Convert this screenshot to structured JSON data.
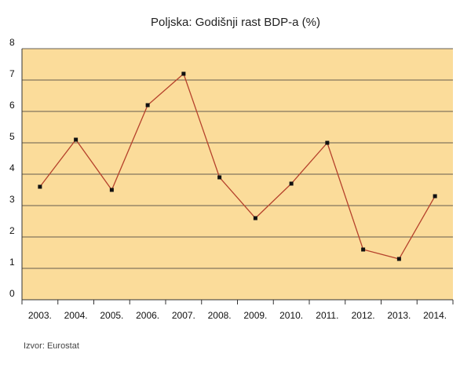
{
  "colors": {
    "plot_background": "#fbdc9a",
    "gridline": "#333333",
    "axis": "#333333",
    "line": "#b5412b",
    "marker": "#111111"
  },
  "chart_data": {
    "type": "line",
    "title": "Poljska: Godišnji rast BDP-a (%)",
    "xlabel": "",
    "ylabel": "",
    "categories": [
      "2003.",
      "2004.",
      "2005.",
      "2006.",
      "2007.",
      "2008.",
      "2009.",
      "2010.",
      "2011.",
      "2012.",
      "2013.",
      "2014."
    ],
    "series": [
      {
        "values": [
          3.6,
          5.1,
          3.5,
          6.2,
          7.2,
          3.9,
          2.6,
          3.7,
          5.0,
          1.6,
          1.3,
          3.3
        ]
      }
    ],
    "ylim": [
      0,
      8
    ],
    "yticks": [
      0,
      1,
      2,
      3,
      4,
      5,
      6,
      7,
      8
    ],
    "grid": true,
    "legend": "none"
  },
  "source": "Izvor: Eurostat"
}
